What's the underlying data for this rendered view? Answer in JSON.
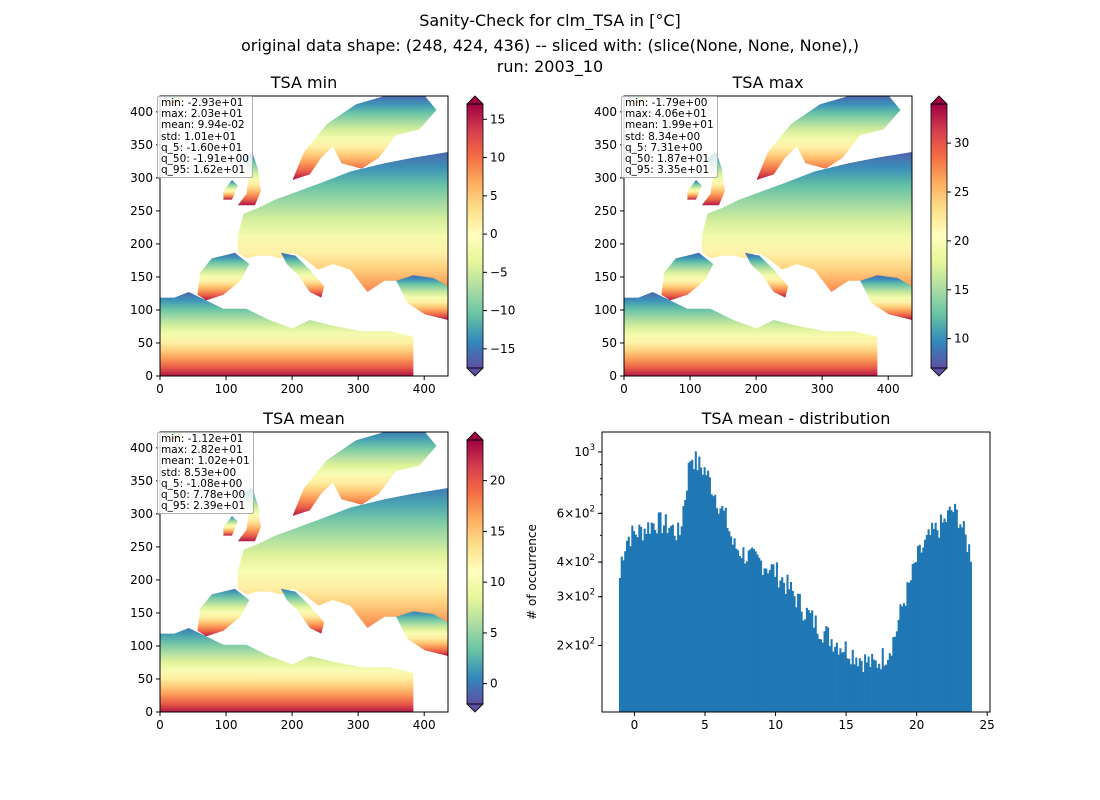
{
  "suptitle": {
    "line1": "Sanity-Check for clm_TSA in [°C]",
    "line2": "original data shape: (248, 424, 436) -- sliced with: (slice(None, None, None),)",
    "line3": "run: 2003_10"
  },
  "colors": {
    "histogram_bar": "#1f77b4",
    "colormap": "Spectral_r",
    "colormap_stops": [
      "#5e4fa2",
      "#3288bd",
      "#66c2a5",
      "#abdda4",
      "#e6f598",
      "#ffffbf",
      "#fee08b",
      "#fdae61",
      "#f46d43",
      "#d53e4f",
      "#9e0142"
    ]
  },
  "chart_data": [
    {
      "type": "heatmap",
      "title": "TSA min",
      "xticks": [
        0,
        100,
        200,
        300,
        400
      ],
      "yticks": [
        0,
        50,
        100,
        150,
        200,
        250,
        300,
        350,
        400
      ],
      "xlim": [
        0,
        436
      ],
      "ylim": [
        0,
        424
      ],
      "colorbar": {
        "vmin": -17.5,
        "vmax": 17,
        "ticks": [
          -15,
          -10,
          -5,
          0,
          5,
          10,
          15
        ],
        "extend": "both"
      },
      "stats": [
        "min: -2.93e+01",
        "max: 2.03e+01",
        "mean: 9.94e-02",
        "std: 1.01e+01",
        "q_5: -1.60e+01",
        "q_50: -1.91e+00",
        "q_95: 1.62e+01"
      ],
      "values_described": {
        "south": 16,
        "north": -16,
        "gradient": "strong south-to-north cooling"
      }
    },
    {
      "type": "heatmap",
      "title": "TSA max",
      "xticks": [
        0,
        100,
        200,
        300,
        400
      ],
      "yticks": [
        0,
        50,
        100,
        150,
        200,
        250,
        300,
        350,
        400
      ],
      "xlim": [
        0,
        436
      ],
      "ylim": [
        0,
        424
      ],
      "colorbar": {
        "vmin": 7,
        "vmax": 34,
        "ticks": [
          10,
          15,
          20,
          25,
          30
        ],
        "extend": "both"
      },
      "stats": [
        "min: -1.79e+00",
        "max: 4.06e+01",
        "mean: 1.99e+01",
        "std: 8.34e+00",
        "q_5: 7.31e+00",
        "q_50: 1.87e+01",
        "q_95: 3.35e+01"
      ],
      "values_described": {
        "south": 33,
        "north": 8,
        "gradient": "strong south-to-north cooling"
      }
    },
    {
      "type": "heatmap",
      "title": "TSA mean",
      "xticks": [
        0,
        100,
        200,
        300,
        400
      ],
      "yticks": [
        0,
        50,
        100,
        150,
        200,
        250,
        300,
        350,
        400
      ],
      "xlim": [
        0,
        436
      ],
      "ylim": [
        0,
        424
      ],
      "colorbar": {
        "vmin": -2,
        "vmax": 24,
        "ticks": [
          0,
          5,
          10,
          15,
          20
        ],
        "extend": "both"
      },
      "stats": [
        "min: -1.12e+01",
        "max: 2.82e+01",
        "mean: 1.02e+01",
        "std: 8.53e+00",
        "q_5: -1.08e+00",
        "q_50: 7.78e+00",
        "q_95: 2.39e+01"
      ],
      "values_described": {
        "south": 23,
        "north": 0,
        "gradient": "south-to-north cooling"
      }
    },
    {
      "type": "bar",
      "title": "TSA mean - distribution",
      "xlabel": "",
      "ylabel": "# of occurrence",
      "yscale": "log",
      "xlim": [
        -2.3,
        25.2
      ],
      "ylim": [
        115,
        1180
      ],
      "xticks": [
        0,
        5,
        10,
        15,
        20,
        25
      ],
      "yticks": [
        {
          "value": 1000,
          "label": "10^3"
        },
        {
          "value": 600,
          "label": "6×10^2"
        },
        {
          "value": 400,
          "label": "4×10^2"
        },
        {
          "value": 300,
          "label": "3×10^2"
        },
        {
          "value": 200,
          "label": "2×10^2"
        }
      ],
      "bin_range": [
        -1.1,
        23.9
      ],
      "anchor_points": [
        [
          -1.1,
          320
        ],
        [
          -0.9,
          420
        ],
        [
          -0.5,
          490
        ],
        [
          0,
          510
        ],
        [
          0.5,
          520
        ],
        [
          1.5,
          560
        ],
        [
          2.5,
          540
        ],
        [
          3.2,
          500
        ],
        [
          3.6,
          700
        ],
        [
          4.0,
          980
        ],
        [
          4.5,
          900
        ],
        [
          5.0,
          860
        ],
        [
          5.5,
          750
        ],
        [
          6.0,
          650
        ],
        [
          6.5,
          570
        ],
        [
          7.0,
          460
        ],
        [
          8.0,
          420
        ],
        [
          9.0,
          400
        ],
        [
          10.0,
          370
        ],
        [
          11.0,
          320
        ],
        [
          12.0,
          270
        ],
        [
          13.0,
          235
        ],
        [
          14.0,
          210
        ],
        [
          15.0,
          195
        ],
        [
          16.0,
          180
        ],
        [
          17.0,
          170
        ],
        [
          18.0,
          190
        ],
        [
          18.5,
          220
        ],
        [
          19.0,
          280
        ],
        [
          19.5,
          330
        ],
        [
          20.0,
          410
        ],
        [
          21.0,
          500
        ],
        [
          22.0,
          560
        ],
        [
          22.5,
          620
        ],
        [
          23.0,
          580
        ],
        [
          23.5,
          480
        ],
        [
          23.9,
          420
        ]
      ]
    }
  ]
}
